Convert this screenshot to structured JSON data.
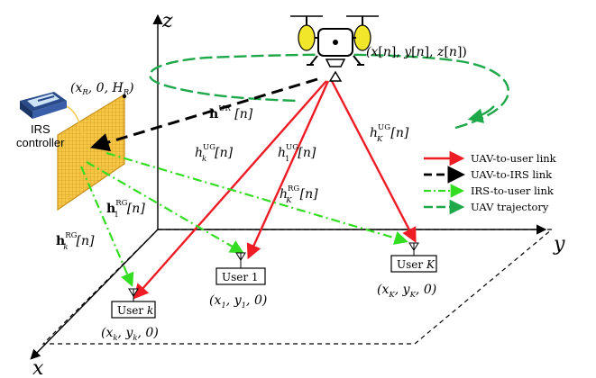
{
  "axes": {
    "x": "x",
    "y": "y",
    "z": "z"
  },
  "irs": {
    "controller_line1": "IRS",
    "controller_line2": "controller",
    "position": "(xR, 0, HR)"
  },
  "uav": {
    "position": "(x[n], y[n], z[n])"
  },
  "channels": {
    "uav_irs": "h^UR[n]",
    "uav_user_k": "h_k^UG[n]",
    "uav_user_1": "h_1^UG[n]",
    "uav_user_K": "h_K^UG[n]",
    "irs_user_1": "h_1^RG[n]",
    "irs_user_k": "h_k^RG[n]",
    "irs_user_K": "h_K^RG[n]"
  },
  "users": [
    {
      "id": "k",
      "label": "User",
      "index": "k",
      "coords": "(xk, yk, 0)"
    },
    {
      "id": "1",
      "label": "User 1",
      "coords": "(x1, y1, 0)"
    },
    {
      "id": "K",
      "label": "User",
      "index": "K",
      "coords": "(xK, yK, 0)"
    }
  ],
  "legend": [
    {
      "label": "UAV-to-user link",
      "color": "#ee1c25",
      "style": "solid"
    },
    {
      "label": "UAV-to-IRS link",
      "color": "#000000",
      "style": "dashed"
    },
    {
      "label": "IRS-to-user link",
      "color": "#33dd22",
      "style": "dashdot"
    },
    {
      "label": "UAV trajectory",
      "color": "#1fa84a",
      "style": "dashed"
    }
  ],
  "colors": {
    "red_link": "#ee1c25",
    "green_link": "#33dd22",
    "trajectory": "#1fa84a",
    "irs_fill": "#f6c644",
    "irs_grid": "#c8901a"
  }
}
